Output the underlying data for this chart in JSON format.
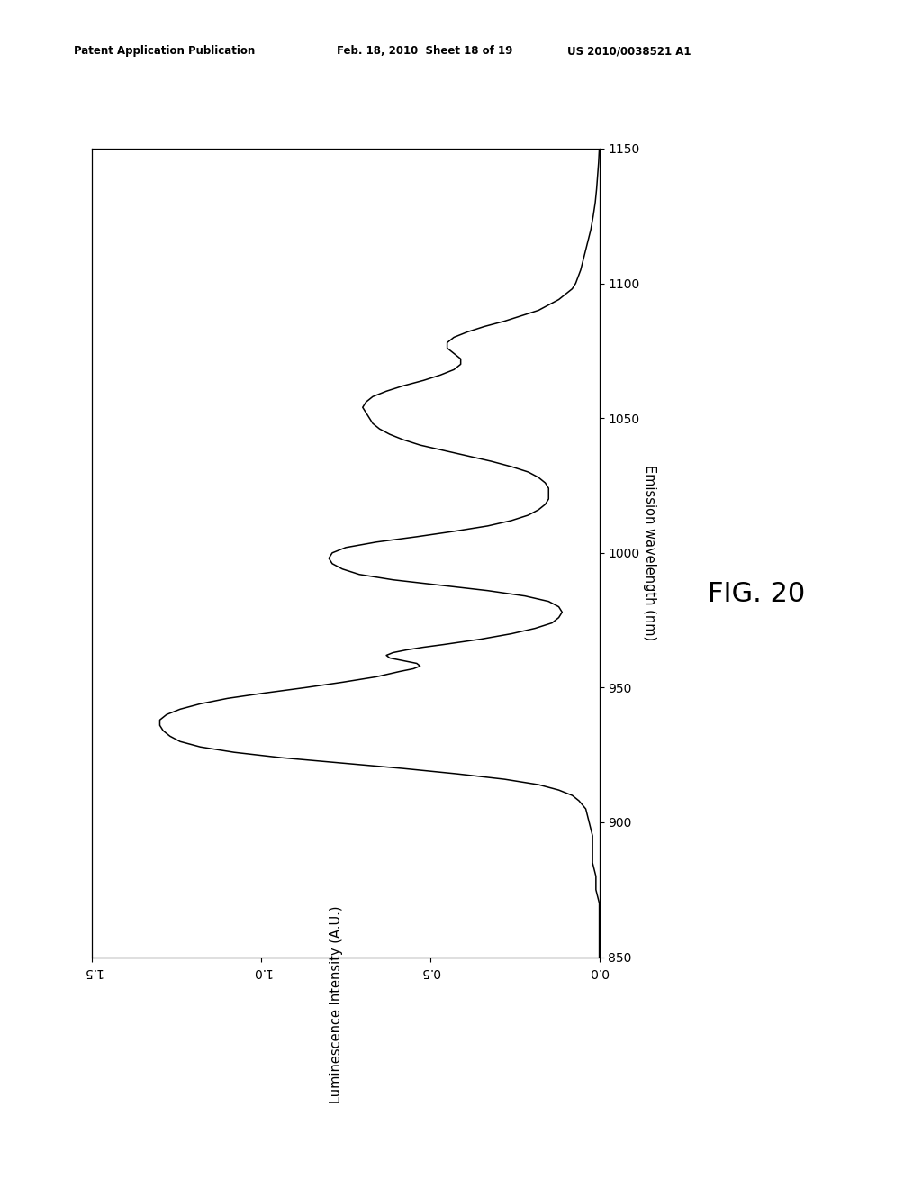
{
  "header_left": "Patent Application Publication",
  "header_mid": "Feb. 18, 2010  Sheet 18 of 19",
  "header_right": "US 2010/0038521 A1",
  "xlabel_rotated": "Emission wavelength (nm)",
  "ylabel_rotated": "Luminescence Intensity (A.U.)",
  "fig_label": "FIG. 20",
  "wl_min": 850,
  "wl_max": 1150,
  "int_min": 0.0,
  "int_max": 1.5,
  "int_ticks": [
    0.0,
    0.5,
    1.0,
    1.5
  ],
  "int_tick_labels": [
    "0",
    "0.5",
    "1",
    "1.5"
  ],
  "wl_ticks": [
    850,
    900,
    950,
    1000,
    1050,
    1100,
    1150
  ],
  "line_color": "#000000",
  "bg_color": "#ffffff",
  "curve_points": [
    [
      850,
      0.0
    ],
    [
      860,
      0.0
    ],
    [
      870,
      0.0
    ],
    [
      875,
      0.01
    ],
    [
      880,
      0.01
    ],
    [
      885,
      0.02
    ],
    [
      890,
      0.02
    ],
    [
      895,
      0.02
    ],
    [
      900,
      0.03
    ],
    [
      905,
      0.04
    ],
    [
      908,
      0.06
    ],
    [
      910,
      0.08
    ],
    [
      912,
      0.12
    ],
    [
      914,
      0.18
    ],
    [
      916,
      0.28
    ],
    [
      918,
      0.42
    ],
    [
      920,
      0.58
    ],
    [
      922,
      0.76
    ],
    [
      924,
      0.94
    ],
    [
      926,
      1.08
    ],
    [
      928,
      1.18
    ],
    [
      930,
      1.24
    ],
    [
      932,
      1.27
    ],
    [
      934,
      1.29
    ],
    [
      936,
      1.3
    ],
    [
      938,
      1.3
    ],
    [
      940,
      1.28
    ],
    [
      942,
      1.24
    ],
    [
      944,
      1.18
    ],
    [
      946,
      1.1
    ],
    [
      948,
      0.99
    ],
    [
      950,
      0.87
    ],
    [
      952,
      0.76
    ],
    [
      954,
      0.66
    ],
    [
      956,
      0.59
    ],
    [
      957,
      0.55
    ],
    [
      958,
      0.53
    ],
    [
      959,
      0.54
    ],
    [
      960,
      0.58
    ],
    [
      961,
      0.62
    ],
    [
      962,
      0.63
    ],
    [
      963,
      0.61
    ],
    [
      964,
      0.57
    ],
    [
      965,
      0.52
    ],
    [
      966,
      0.46
    ],
    [
      968,
      0.35
    ],
    [
      970,
      0.26
    ],
    [
      972,
      0.19
    ],
    [
      974,
      0.14
    ],
    [
      976,
      0.12
    ],
    [
      978,
      0.11
    ],
    [
      980,
      0.12
    ],
    [
      982,
      0.15
    ],
    [
      984,
      0.22
    ],
    [
      986,
      0.33
    ],
    [
      988,
      0.47
    ],
    [
      990,
      0.61
    ],
    [
      992,
      0.71
    ],
    [
      994,
      0.76
    ],
    [
      996,
      0.79
    ],
    [
      998,
      0.8
    ],
    [
      1000,
      0.79
    ],
    [
      1002,
      0.75
    ],
    [
      1004,
      0.66
    ],
    [
      1006,
      0.54
    ],
    [
      1008,
      0.43
    ],
    [
      1010,
      0.33
    ],
    [
      1012,
      0.26
    ],
    [
      1014,
      0.21
    ],
    [
      1016,
      0.18
    ],
    [
      1018,
      0.16
    ],
    [
      1020,
      0.15
    ],
    [
      1022,
      0.15
    ],
    [
      1024,
      0.15
    ],
    [
      1026,
      0.16
    ],
    [
      1028,
      0.18
    ],
    [
      1030,
      0.21
    ],
    [
      1032,
      0.26
    ],
    [
      1034,
      0.32
    ],
    [
      1036,
      0.39
    ],
    [
      1038,
      0.46
    ],
    [
      1040,
      0.53
    ],
    [
      1042,
      0.58
    ],
    [
      1044,
      0.62
    ],
    [
      1046,
      0.65
    ],
    [
      1048,
      0.67
    ],
    [
      1050,
      0.68
    ],
    [
      1052,
      0.69
    ],
    [
      1054,
      0.7
    ],
    [
      1056,
      0.69
    ],
    [
      1058,
      0.67
    ],
    [
      1060,
      0.63
    ],
    [
      1062,
      0.58
    ],
    [
      1064,
      0.52
    ],
    [
      1066,
      0.47
    ],
    [
      1068,
      0.43
    ],
    [
      1070,
      0.41
    ],
    [
      1072,
      0.41
    ],
    [
      1074,
      0.43
    ],
    [
      1076,
      0.45
    ],
    [
      1078,
      0.45
    ],
    [
      1080,
      0.43
    ],
    [
      1082,
      0.39
    ],
    [
      1084,
      0.34
    ],
    [
      1086,
      0.28
    ],
    [
      1088,
      0.23
    ],
    [
      1090,
      0.18
    ],
    [
      1092,
      0.15
    ],
    [
      1094,
      0.12
    ],
    [
      1096,
      0.1
    ],
    [
      1098,
      0.08
    ],
    [
      1100,
      0.07
    ],
    [
      1105,
      0.055
    ],
    [
      1110,
      0.045
    ],
    [
      1115,
      0.035
    ],
    [
      1120,
      0.025
    ],
    [
      1125,
      0.018
    ],
    [
      1130,
      0.012
    ],
    [
      1135,
      0.008
    ],
    [
      1140,
      0.005
    ],
    [
      1145,
      0.002
    ],
    [
      1150,
      0.0
    ]
  ]
}
